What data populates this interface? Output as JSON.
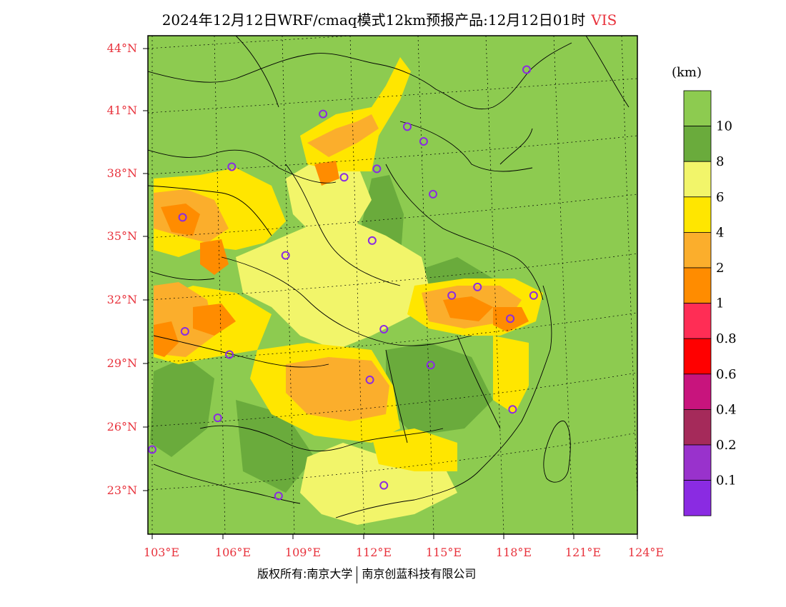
{
  "title": {
    "main": "2024年12月12日WRF/cmaq模式12km预报产品:12月12日01时",
    "variable": "VIS"
  },
  "colorbar": {
    "unit": "(km)",
    "levels": [
      {
        "label": "",
        "color": "#8dcb50"
      },
      {
        "label": "10",
        "color": "#6aab3c"
      },
      {
        "label": "8",
        "color": "#f2f56a"
      },
      {
        "label": "6",
        "color": "#ffe600"
      },
      {
        "label": "4",
        "color": "#fbae2c"
      },
      {
        "label": "2",
        "color": "#ff8c00"
      },
      {
        "label": "1",
        "color": "#ff2d55"
      },
      {
        "label": "0.8",
        "color": "#ff0000"
      },
      {
        "label": "0.6",
        "color": "#c8147d"
      },
      {
        "label": "0.4",
        "color": "#a52a5a"
      },
      {
        "label": "0.2",
        "color": "#9932cc"
      },
      {
        "label": "0.1",
        "color": "#8a2be2"
      }
    ]
  },
  "axes": {
    "lat_labels": [
      "44°N",
      "41°N",
      "38°N",
      "35°N",
      "32°N",
      "29°N",
      "26°N",
      "23°N"
    ],
    "lon_labels": [
      "103°E",
      "106°E",
      "109°E",
      "112°E",
      "115°E",
      "118°E",
      "121°E",
      "124°E"
    ]
  },
  "map": {
    "background_color": "#8dcb50",
    "station_marker_color": "#8a2be2",
    "stations": [
      {
        "lon": 119.0,
        "lat": 43.0
      },
      {
        "lon": 110.3,
        "lat": 40.9
      },
      {
        "lon": 113.9,
        "lat": 40.3
      },
      {
        "lon": 114.6,
        "lat": 39.6
      },
      {
        "lon": 106.4,
        "lat": 38.4
      },
      {
        "lon": 111.2,
        "lat": 37.9
      },
      {
        "lon": 112.6,
        "lat": 38.3
      },
      {
        "lon": 115.0,
        "lat": 37.1
      },
      {
        "lon": 104.3,
        "lat": 36.0
      },
      {
        "lon": 112.4,
        "lat": 34.9
      },
      {
        "lon": 108.7,
        "lat": 34.2
      },
      {
        "lon": 115.8,
        "lat": 32.3
      },
      {
        "lon": 116.9,
        "lat": 32.7
      },
      {
        "lon": 119.3,
        "lat": 32.3
      },
      {
        "lon": 118.3,
        "lat": 31.2
      },
      {
        "lon": 104.4,
        "lat": 30.6
      },
      {
        "lon": 112.9,
        "lat": 30.7
      },
      {
        "lon": 106.3,
        "lat": 29.5
      },
      {
        "lon": 114.9,
        "lat": 29.0
      },
      {
        "lon": 112.3,
        "lat": 28.3
      },
      {
        "lon": 105.8,
        "lat": 26.5
      },
      {
        "lon": 118.4,
        "lat": 26.9
      },
      {
        "lon": 103.0,
        "lat": 25.0
      },
      {
        "lon": 112.9,
        "lat": 23.3
      },
      {
        "lon": 108.4,
        "lat": 22.8
      }
    ]
  },
  "credit": {
    "left": "版权所有:南京大学",
    "right": "南京创蓝科技有限公司"
  }
}
